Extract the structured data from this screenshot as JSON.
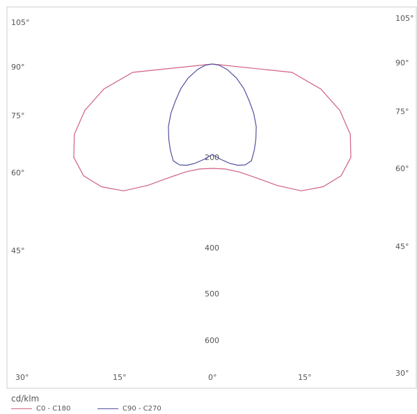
{
  "chart_data": {
    "type": "polar",
    "unit": "cd/klm",
    "angle_labels_left": [
      "105°",
      "90°",
      "75°",
      "60°",
      "45°",
      "30°"
    ],
    "angle_labels_right": [
      "105°",
      "90°",
      "75°",
      "60°",
      "45°",
      "30°"
    ],
    "bottom_angle_labels": [
      "15°",
      "0°",
      "15°"
    ],
    "radial_labels": [
      "200",
      "400",
      "500",
      "600"
    ],
    "series": [
      {
        "name": "C0 - C180",
        "color": "#d06080",
        "points": [
          [
            0,
            300
          ],
          [
            7,
            304
          ],
          [
            14,
            320
          ],
          [
            21,
            350
          ],
          [
            28,
            395
          ],
          [
            35,
            445
          ],
          [
            42,
            475
          ],
          [
            49,
            490
          ],
          [
            56,
            480
          ],
          [
            63,
            445
          ],
          [
            70,
            390
          ],
          [
            77,
            320
          ],
          [
            84,
            230
          ],
          [
            90,
            0
          ]
        ]
      },
      {
        "name": "C90 - C270",
        "color": "#5050a0",
        "points": [
          [
            0,
            260
          ],
          [
            5,
            275
          ],
          [
            10,
            290
          ],
          [
            14,
            300
          ],
          [
            18,
            305
          ],
          [
            22,
            300
          ],
          [
            26,
            275
          ],
          [
            30,
            250
          ],
          [
            35,
            220
          ],
          [
            40,
            185
          ],
          [
            45,
            150
          ],
          [
            52,
            115
          ],
          [
            60,
            80
          ],
          [
            70,
            45
          ],
          [
            80,
            20
          ],
          [
            90,
            0
          ]
        ]
      }
    ]
  }
}
